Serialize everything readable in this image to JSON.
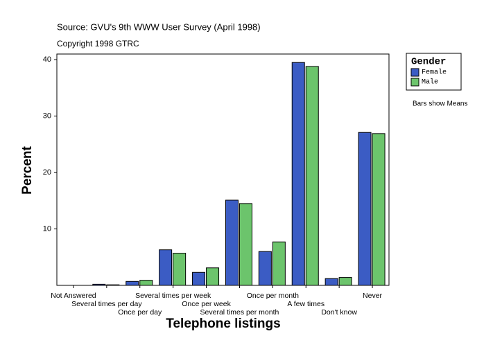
{
  "chart_data": {
    "type": "bar",
    "source": "Source: GVU's 9th WWW User Survey (April 1998)",
    "copyright": "Copyright 1998 GTRC",
    "x_label": "Telephone listings",
    "y_label": "Percent",
    "legend_title": "Gender",
    "note": "Bars show Means",
    "categories": [
      "Not Answered",
      "Several  times per day",
      "Once per day",
      "Several times per week",
      "Once per week",
      "Several times per month",
      "Once per month",
      "A few times",
      "Don't know",
      "Never"
    ],
    "series": [
      {
        "name": "Female",
        "color": "#3b5cc4",
        "values": [
          0,
          0.2,
          0.7,
          6.3,
          2.3,
          15.1,
          6.0,
          39.5,
          1.2,
          27.1
        ]
      },
      {
        "name": "Male",
        "color": "#6cc46c",
        "values": [
          0,
          0.1,
          0.9,
          5.7,
          3.1,
          14.5,
          7.7,
          38.8,
          1.4,
          26.9
        ]
      }
    ],
    "ylim": [
      0,
      41
    ],
    "yticks": [
      10,
      20,
      30,
      40
    ]
  }
}
